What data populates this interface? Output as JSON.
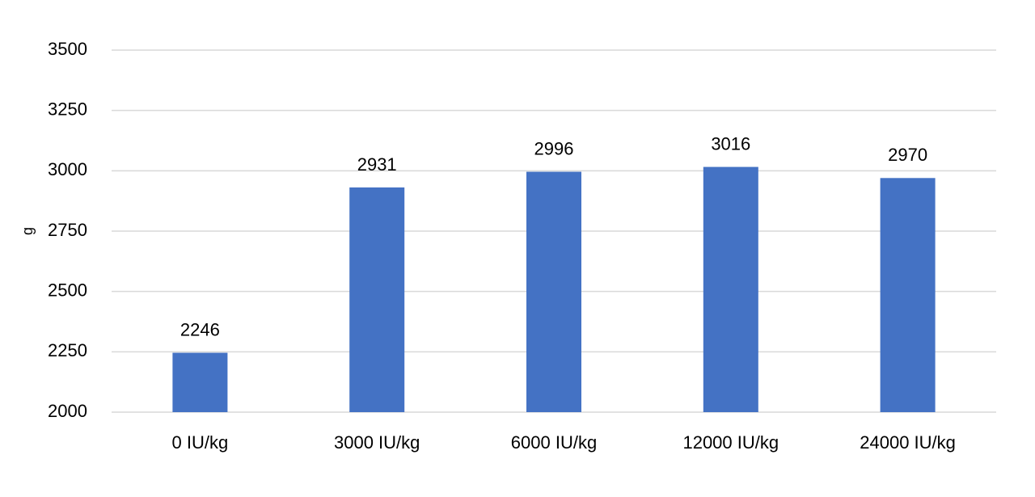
{
  "chart_data": {
    "type": "bar",
    "y_label": "g",
    "categories": [
      "0 IU/kg",
      "3000 IU/kg",
      "6000 IU/kg",
      "12000 IU/kg",
      "24000 IU/kg"
    ],
    "values": [
      2246,
      2931,
      2996,
      3016,
      2970
    ],
    "color": "#4472c4",
    "ylim": [
      2000,
      3500
    ],
    "yticks": [
      2000,
      2250,
      2500,
      2750,
      3000,
      3250,
      3500
    ],
    "grid": true,
    "data_labels": true
  }
}
